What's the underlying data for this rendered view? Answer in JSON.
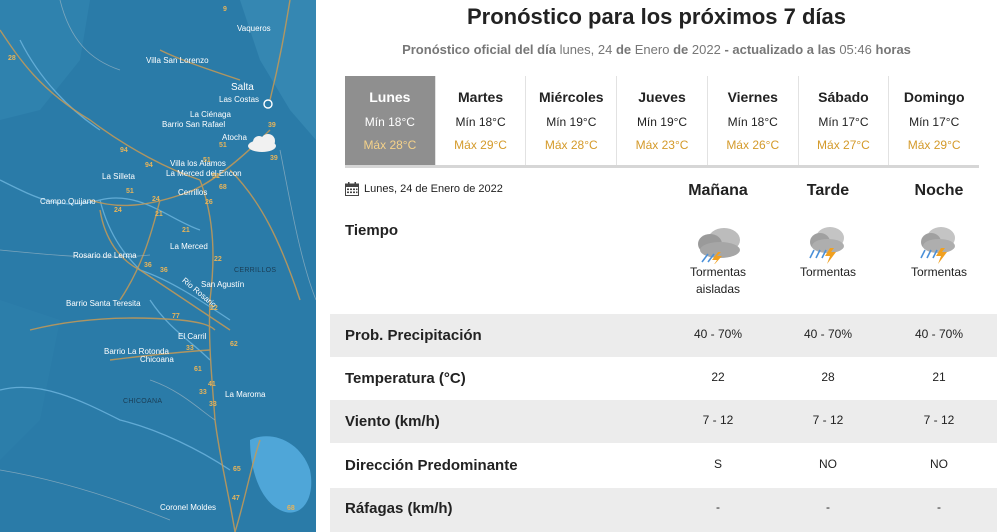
{
  "map": {
    "cities": [
      "Vaqueros",
      "Villa San Lorenzo",
      "Salta",
      "Las Costas",
      "La Ciénaga",
      "Barrio San Rafael",
      "Atocha",
      "Villa los Alamos",
      "La Merced del Encon",
      "La Silleta",
      "Cerrillos",
      "Campo Quijano",
      "La Merced",
      "Rosario de Lerma",
      "San Agustín",
      "Barrio Santa Teresita",
      "El Carril",
      "Barrio La Rotonda",
      "Chicoana",
      "La Maroma",
      "Coronel Moldes",
      "Rio Rosario"
    ],
    "regions": [
      "CERRILLOS",
      "CHICOANA"
    ],
    "route_numbers": [
      "9",
      "28",
      "39",
      "39",
      "51",
      "51",
      "51",
      "51",
      "68",
      "94",
      "94",
      "21",
      "24",
      "24",
      "26",
      "36",
      "36",
      "21",
      "22",
      "22",
      "77",
      "33",
      "62",
      "61",
      "41",
      "33",
      "65",
      "68",
      "47",
      "33"
    ]
  },
  "header": {
    "title": "Pronóstico para los próximos 7 días",
    "subtitle_prefix": "Pronóstico oficial del día",
    "subtitle_weekday": "lunes, 24",
    "subtitle_de1": "de",
    "subtitle_month": "Enero",
    "subtitle_de2": "de",
    "subtitle_year": "2022",
    "subtitle_updated": "- actualizado a las",
    "subtitle_time": "05:46",
    "subtitle_horas": "horas"
  },
  "days": [
    {
      "name": "Lunes",
      "min": "Mín 18°C",
      "max": "Máx 28°C",
      "active": true
    },
    {
      "name": "Martes",
      "min": "Mín 18°C",
      "max": "Máx 29°C",
      "active": false
    },
    {
      "name": "Miércoles",
      "min": "Mín 19°C",
      "max": "Máx 28°C",
      "active": false
    },
    {
      "name": "Jueves",
      "min": "Mín 19°C",
      "max": "Máx 23°C",
      "active": false
    },
    {
      "name": "Viernes",
      "min": "Mín 18°C",
      "max": "Máx 26°C",
      "active": false
    },
    {
      "name": "Sábado",
      "min": "Mín 17°C",
      "max": "Máx 27°C",
      "active": false
    },
    {
      "name": "Domingo",
      "min": "Mín 17°C",
      "max": "Máx 29°C",
      "active": false
    }
  ],
  "detail": {
    "date": "Lunes, 24 de Enero de 2022",
    "periods": [
      "Mañana",
      "Tarde",
      "Noche"
    ],
    "rows": {
      "tiempo": {
        "label": "Tiempo",
        "icons": [
          "cloud-lightning-icon",
          "storm-icon",
          "storm-icon"
        ],
        "values": [
          "Tormentas aisladas",
          "Tormentas",
          "Tormentas"
        ]
      },
      "precip": {
        "label": "Prob. Precipitación",
        "values": [
          "40 - 70%",
          "40 - 70%",
          "40 - 70%"
        ]
      },
      "temp": {
        "label": "Temperatura (°C)",
        "values": [
          "22",
          "28",
          "21"
        ]
      },
      "viento": {
        "label": "Viento (km/h)",
        "values": [
          "7 - 12",
          "7 - 12",
          "7 - 12"
        ]
      },
      "direccion": {
        "label": "Dirección Predominante",
        "values": [
          "S",
          "NO",
          "NO"
        ]
      },
      "rafagas": {
        "label": "Ráfagas (km/h)",
        "values": [
          "-",
          "-",
          "-"
        ]
      }
    }
  },
  "colors": {
    "active_day": "#8f8f8f",
    "max_temp": "#d49a2a",
    "band": "#ececec",
    "map_water": "#2a7ba8"
  }
}
